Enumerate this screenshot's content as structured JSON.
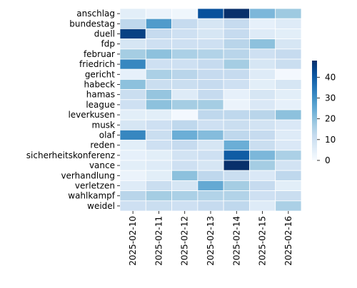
{
  "chart_data": {
    "type": "heatmap",
    "title": "",
    "xlabel": "",
    "ylabel": "",
    "x": [
      "2025-02-10",
      "2025-02-11",
      "2025-02-12",
      "2025-02-13",
      "2025-02-14",
      "2025-02-15",
      "2025-02-16"
    ],
    "y": [
      "anschlag",
      "bundestag",
      "duell",
      "fdp",
      "februar",
      "friedrich",
      "gericht",
      "habeck",
      "hamas",
      "league",
      "leverkusen",
      "musk",
      "olaf",
      "reden",
      "sicherheitskonferenz",
      "vance",
      "verhandlung",
      "verletzen",
      "wahlkampf",
      "weidel"
    ],
    "values": [
      [
        5,
        3,
        2,
        42,
        48,
        22,
        18
      ],
      [
        13,
        28,
        12,
        8,
        12,
        4,
        6
      ],
      [
        45,
        12,
        10,
        8,
        12,
        6,
        5
      ],
      [
        8,
        10,
        10,
        10,
        14,
        20,
        8
      ],
      [
        17,
        20,
        16,
        15,
        14,
        10,
        12
      ],
      [
        32,
        10,
        10,
        12,
        17,
        8,
        11
      ],
      [
        4,
        16,
        14,
        12,
        12,
        6,
        1
      ],
      [
        20,
        11,
        11,
        12,
        10,
        5,
        8
      ],
      [
        11,
        19,
        6,
        12,
        4,
        8,
        5
      ],
      [
        10,
        20,
        17,
        17,
        3,
        7,
        4
      ],
      [
        5,
        5,
        1,
        13,
        13,
        14,
        20
      ],
      [
        8,
        10,
        13,
        10,
        11,
        9,
        7
      ],
      [
        32,
        11,
        24,
        21,
        13,
        12,
        6
      ],
      [
        5,
        10,
        12,
        8,
        24,
        11,
        7
      ],
      [
        4,
        5,
        9,
        10,
        40,
        22,
        16
      ],
      [
        5,
        6,
        10,
        8,
        48,
        17,
        9
      ],
      [
        3,
        5,
        20,
        13,
        11,
        7,
        13
      ],
      [
        6,
        11,
        8,
        25,
        17,
        12,
        5
      ],
      [
        14,
        17,
        16,
        15,
        15,
        10,
        11
      ],
      [
        10,
        11,
        10,
        12,
        13,
        6,
        16
      ]
    ],
    "colorbar": {
      "range": [
        0,
        48
      ],
      "ticks": [
        0,
        10,
        20,
        30,
        40
      ],
      "colormap": "Blues",
      "position": "right"
    },
    "cell_border_color": "#ffffff"
  }
}
